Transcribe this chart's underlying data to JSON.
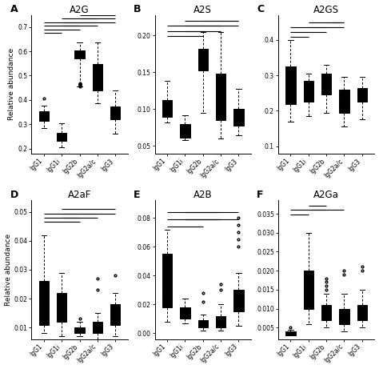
{
  "panels": [
    {
      "label": "A",
      "title": "A2G",
      "ylim": [
        0.18,
        0.75
      ],
      "yticks": [
        0.2,
        0.3,
        0.4,
        0.5,
        0.6,
        0.7
      ],
      "boxes": [
        {
          "whislo": 0.285,
          "q1": 0.315,
          "med": 0.33,
          "q3": 0.352,
          "whishi": 0.375,
          "fliers_lo": [],
          "fliers_hi": [
            0.405
          ]
        },
        {
          "whislo": 0.205,
          "q1": 0.23,
          "med": 0.245,
          "q3": 0.265,
          "whishi": 0.305,
          "fliers_lo": [],
          "fliers_hi": []
        },
        {
          "whislo": 0.455,
          "q1": 0.57,
          "med": 0.585,
          "q3": 0.605,
          "whishi": 0.635,
          "fliers_lo": [
            0.455,
            0.46,
            0.462,
            0.464,
            0.466,
            0.468
          ],
          "fliers_hi": []
        },
        {
          "whislo": 0.385,
          "q1": 0.44,
          "med": 0.465,
          "q3": 0.548,
          "whishi": 0.635,
          "fliers_lo": [],
          "fliers_hi": []
        },
        {
          "whislo": 0.26,
          "q1": 0.32,
          "med": 0.345,
          "q3": 0.372,
          "whishi": 0.44,
          "fliers_lo": [],
          "fliers_hi": []
        }
      ],
      "sig_lines": [
        [
          1,
          5,
          0.72
        ],
        [
          1,
          4,
          0.705
        ],
        [
          1,
          3,
          0.69
        ],
        [
          1,
          2,
          0.675
        ],
        [
          2,
          5,
          0.735
        ],
        [
          2,
          4,
          0.72
        ],
        [
          2,
          3,
          0.705
        ],
        [
          3,
          5,
          0.75
        ],
        [
          3,
          4,
          0.735
        ]
      ],
      "show_ylabel": true
    },
    {
      "label": "B",
      "title": "A2S",
      "ylim": [
        0.04,
        0.228
      ],
      "yticks": [
        0.05,
        0.1,
        0.15,
        0.2
      ],
      "boxes": [
        {
          "whislo": 0.082,
          "q1": 0.09,
          "med": 0.102,
          "q3": 0.112,
          "whishi": 0.138,
          "fliers_lo": [],
          "fliers_hi": []
        },
        {
          "whislo": 0.058,
          "q1": 0.061,
          "med": 0.068,
          "q3": 0.08,
          "whishi": 0.092,
          "fliers_lo": [],
          "fliers_hi": []
        },
        {
          "whislo": 0.095,
          "q1": 0.153,
          "med": 0.165,
          "q3": 0.182,
          "whishi": 0.205,
          "fliers_lo": [],
          "fliers_hi": []
        },
        {
          "whislo": 0.06,
          "q1": 0.085,
          "med": 0.1,
          "q3": 0.148,
          "whishi": 0.205,
          "fliers_lo": [],
          "fliers_hi": []
        },
        {
          "whislo": 0.065,
          "q1": 0.078,
          "med": 0.088,
          "q3": 0.1,
          "whishi": 0.128,
          "fliers_lo": [],
          "fliers_hi": []
        }
      ],
      "sig_lines": [
        [
          1,
          5,
          0.213
        ],
        [
          1,
          4,
          0.206
        ],
        [
          1,
          3,
          0.199
        ],
        [
          2,
          5,
          0.22
        ],
        [
          2,
          4,
          0.213
        ],
        [
          2,
          3,
          0.206
        ],
        [
          3,
          5,
          0.22
        ]
      ],
      "show_ylabel": false
    },
    {
      "label": "C",
      "title": "A2GS",
      "ylim": [
        0.08,
        0.47
      ],
      "yticks": [
        0.1,
        0.2,
        0.3,
        0.4
      ],
      "boxes": [
        {
          "whislo": 0.17,
          "q1": 0.22,
          "med": 0.295,
          "q3": 0.325,
          "whishi": 0.4,
          "fliers_lo": [],
          "fliers_hi": []
        },
        {
          "whislo": 0.185,
          "q1": 0.225,
          "med": 0.255,
          "q3": 0.285,
          "whishi": 0.305,
          "fliers_lo": [],
          "fliers_hi": []
        },
        {
          "whislo": 0.195,
          "q1": 0.245,
          "med": 0.27,
          "q3": 0.305,
          "whishi": 0.33,
          "fliers_lo": [],
          "fliers_hi": []
        },
        {
          "whislo": 0.155,
          "q1": 0.195,
          "med": 0.215,
          "q3": 0.26,
          "whishi": 0.295,
          "fliers_lo": [],
          "fliers_hi": []
        },
        {
          "whislo": 0.175,
          "q1": 0.225,
          "med": 0.245,
          "q3": 0.265,
          "whishi": 0.295,
          "fliers_lo": [],
          "fliers_hi": []
        }
      ],
      "sig_lines": [
        [
          1,
          4,
          0.435
        ],
        [
          1,
          3,
          0.421
        ],
        [
          1,
          2,
          0.408
        ],
        [
          2,
          4,
          0.448
        ],
        [
          2,
          3,
          0.435
        ],
        [
          3,
          4,
          0.448
        ]
      ],
      "show_ylabel": false
    },
    {
      "label": "D",
      "title": "A2aF",
      "ylim": [
        0.006,
        0.054
      ],
      "yticks": [
        0.01,
        0.02,
        0.03,
        0.04,
        0.05
      ],
      "boxes": [
        {
          "whislo": 0.008,
          "q1": 0.011,
          "med": 0.019,
          "q3": 0.026,
          "whishi": 0.042,
          "fliers_lo": [],
          "fliers_hi": []
        },
        {
          "whislo": 0.007,
          "q1": 0.012,
          "med": 0.016,
          "q3": 0.022,
          "whishi": 0.029,
          "fliers_lo": [],
          "fliers_hi": []
        },
        {
          "whislo": 0.007,
          "q1": 0.008,
          "med": 0.0085,
          "q3": 0.01,
          "whishi": 0.012,
          "fliers_lo": [],
          "fliers_hi": [
            0.013
          ]
        },
        {
          "whislo": 0.006,
          "q1": 0.008,
          "med": 0.0095,
          "q3": 0.012,
          "whishi": 0.015,
          "fliers_lo": [],
          "fliers_hi": [
            0.023,
            0.027
          ]
        },
        {
          "whislo": 0.007,
          "q1": 0.011,
          "med": 0.013,
          "q3": 0.018,
          "whishi": 0.022,
          "fliers_lo": [],
          "fliers_hi": [
            0.028
          ]
        }
      ],
      "sig_lines": [
        [
          1,
          5,
          0.0495
        ],
        [
          1,
          4,
          0.048
        ],
        [
          1,
          3,
          0.0465
        ],
        [
          2,
          5,
          0.051
        ],
        [
          2,
          4,
          0.0495
        ],
        [
          2,
          3,
          0.048
        ]
      ],
      "show_ylabel": true
    },
    {
      "label": "E",
      "title": "A2B",
      "ylim": [
        -0.004,
        0.092
      ],
      "yticks": [
        0.0,
        0.02,
        0.04,
        0.06,
        0.08
      ],
      "boxes": [
        {
          "whislo": 0.008,
          "q1": 0.018,
          "med": 0.03,
          "q3": 0.055,
          "whishi": 0.072,
          "fliers_lo": [],
          "fliers_hi": []
        },
        {
          "whislo": 0.007,
          "q1": 0.01,
          "med": 0.012,
          "q3": 0.018,
          "whishi": 0.024,
          "fliers_lo": [],
          "fliers_hi": []
        },
        {
          "whislo": 0.002,
          "q1": 0.004,
          "med": 0.006,
          "q3": 0.009,
          "whishi": 0.013,
          "fliers_lo": [],
          "fliers_hi": [
            0.022,
            0.028
          ]
        },
        {
          "whislo": 0.002,
          "q1": 0.004,
          "med": 0.007,
          "q3": 0.012,
          "whishi": 0.02,
          "fliers_lo": [],
          "fliers_hi": [
            0.03,
            0.034
          ]
        },
        {
          "whislo": 0.005,
          "q1": 0.015,
          "med": 0.022,
          "q3": 0.03,
          "whishi": 0.042,
          "fliers_lo": [],
          "fliers_hi": [
            0.06,
            0.065,
            0.07,
            0.075,
            0.08
          ]
        }
      ],
      "sig_lines": [
        [
          1,
          5,
          0.084
        ],
        [
          1,
          4,
          0.079
        ],
        [
          1,
          3,
          0.074
        ],
        [
          2,
          5,
          0.079
        ],
        [
          2,
          4,
          0.084
        ],
        [
          2,
          3,
          0.079
        ],
        [
          3,
          4,
          0.079
        ]
      ],
      "show_ylabel": false
    },
    {
      "label": "F",
      "title": "A2Ga",
      "ylim": [
        0.002,
        0.0385
      ],
      "yticks": [
        0.005,
        0.01,
        0.015,
        0.02,
        0.025,
        0.03,
        0.035
      ],
      "boxes": [
        {
          "whislo": 0.003,
          "q1": 0.003,
          "med": 0.0035,
          "q3": 0.004,
          "whishi": 0.0045,
          "fliers_lo": [],
          "fliers_hi": [
            0.005
          ]
        },
        {
          "whislo": 0.006,
          "q1": 0.01,
          "med": 0.014,
          "q3": 0.02,
          "whishi": 0.03,
          "fliers_lo": [],
          "fliers_hi": []
        },
        {
          "whislo": 0.005,
          "q1": 0.007,
          "med": 0.009,
          "q3": 0.011,
          "whishi": 0.014,
          "fliers_lo": [],
          "fliers_hi": [
            0.015,
            0.016,
            0.017,
            0.018
          ]
        },
        {
          "whislo": 0.004,
          "q1": 0.006,
          "med": 0.008,
          "q3": 0.01,
          "whishi": 0.014,
          "fliers_lo": [],
          "fliers_hi": [
            0.019,
            0.02
          ]
        },
        {
          "whislo": 0.005,
          "q1": 0.007,
          "med": 0.009,
          "q3": 0.011,
          "whishi": 0.015,
          "fliers_lo": [],
          "fliers_hi": [
            0.02,
            0.021
          ]
        }
      ],
      "sig_lines": [
        [
          1,
          3,
          0.036
        ],
        [
          1,
          2,
          0.0348
        ],
        [
          2,
          4,
          0.036
        ],
        [
          2,
          3,
          0.0372
        ]
      ],
      "show_ylabel": false
    }
  ],
  "categories": [
    "IgG1",
    "IgG1i",
    "IgG2b",
    "IgG2a/c",
    "IgG3"
  ],
  "box_color": "#d3d3d3",
  "ylabel": "Relative abundance"
}
